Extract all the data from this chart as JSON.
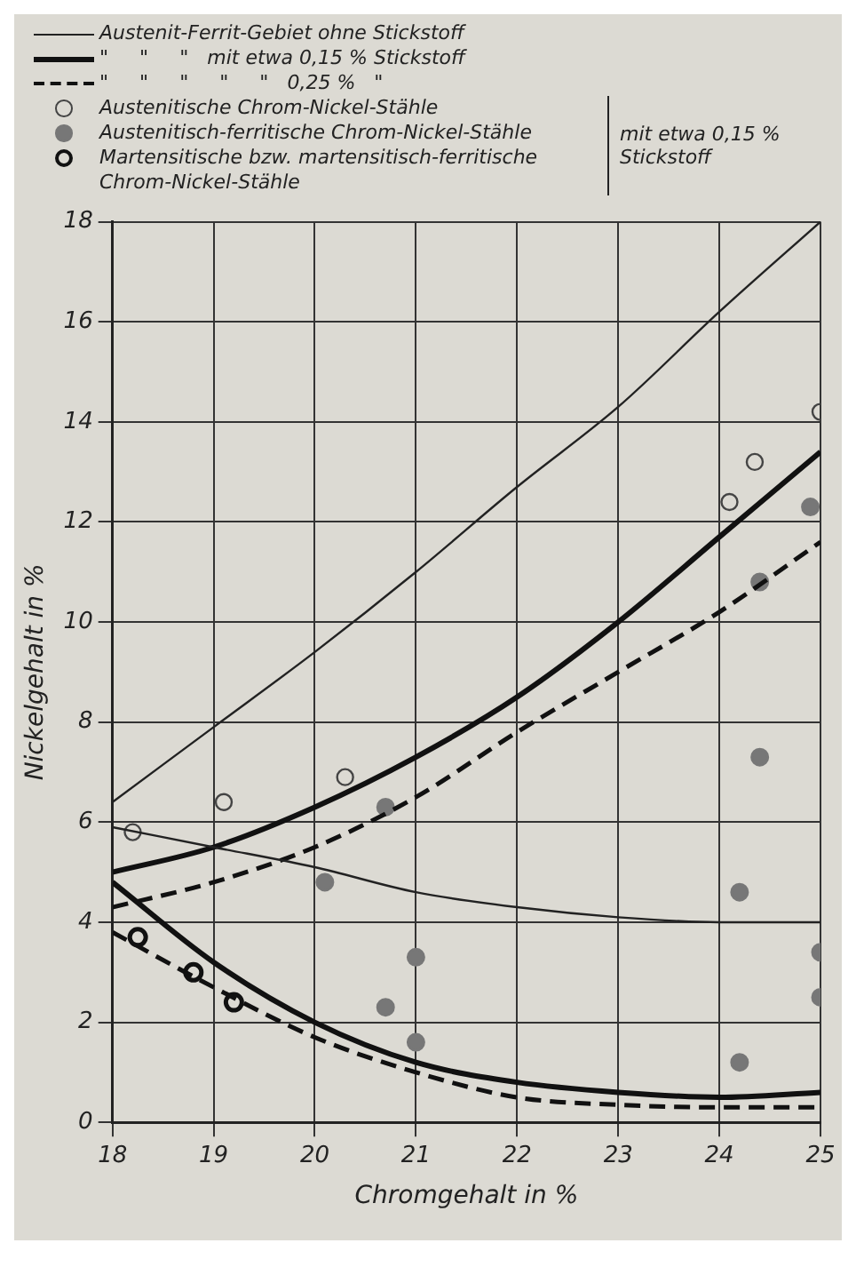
{
  "chart_data": {
    "type": "line",
    "xlabel": "Chromgehalt in %",
    "ylabel": "Nickelgehalt in %",
    "xlim": [
      18,
      25
    ],
    "xticks": [
      18,
      19,
      20,
      21,
      22,
      23,
      24,
      25
    ],
    "ylim": [
      0,
      18
    ],
    "yticks": [
      0,
      2,
      4,
      6,
      8,
      10,
      12,
      14,
      16,
      18
    ],
    "grid": true,
    "legend": "top",
    "marker": "none",
    "annotations": [
      "mit etwa 0,15 % Stickstoff"
    ],
    "series": [
      {
        "name": "Austenit-Ferrit-Gebiet ohne Stickstoff",
        "line_style": "solid",
        "color": "#222222",
        "x": [
          18,
          19,
          20,
          21,
          22,
          23,
          24,
          25
        ],
        "values": [
          6.4,
          7.9,
          9.4,
          11.0,
          12.7,
          14.3,
          16.2,
          18.0
        ]
      },
      {
        "line_style": "solid",
        "color": "#222222",
        "x": [
          18,
          19,
          20,
          21,
          22,
          23,
          24,
          25
        ],
        "values": [
          5.9,
          5.5,
          5.1,
          4.6,
          4.3,
          4.1,
          4.0,
          4.0
        ]
      },
      {
        "name": "\"     \"     \"   mit etwa 0,15 % Stickstoff",
        "line_style": "solid",
        "color": "#111111",
        "x": [
          18,
          19,
          20,
          21,
          22,
          23,
          24,
          25
        ],
        "values": [
          5.0,
          5.5,
          6.3,
          7.3,
          8.5,
          10.0,
          11.7,
          13.4
        ]
      },
      {
        "line_style": "solid",
        "color": "#111111",
        "x": [
          18,
          19,
          20,
          21,
          22,
          23,
          24,
          25
        ],
        "values": [
          4.8,
          3.2,
          2.0,
          1.2,
          0.8,
          0.6,
          0.5,
          0.6
        ]
      },
      {
        "name": "\"     \"     \"     \"     \"   0,25 %   \"",
        "line_style": "dashed",
        "color": "#111111",
        "x": [
          18,
          19,
          20,
          21,
          22,
          23,
          24,
          25
        ],
        "values": [
          4.3,
          4.8,
          5.5,
          6.5,
          7.8,
          9.0,
          10.2,
          11.6
        ]
      },
      {
        "line_style": "dashed",
        "color": "#111111",
        "x": [
          18,
          19,
          20,
          21,
          22,
          23,
          24,
          25
        ],
        "values": [
          3.8,
          2.7,
          1.7,
          1.0,
          0.5,
          0.35,
          0.3,
          0.3
        ]
      },
      {
        "name": "Austenitische Chrom-Nickel-Stähle",
        "type": "scatter",
        "marker": "circle",
        "color": "#444444",
        "x": [
          18.2,
          19.1,
          20.3,
          24.1,
          24.35,
          25
        ],
        "values": [
          5.8,
          6.4,
          6.9,
          12.4,
          13.2,
          14.2
        ]
      },
      {
        "name": "Austenitisch-ferritische Chrom-Nickel-Stähle",
        "type": "scatter",
        "marker": "circle",
        "color": "#777777",
        "x": [
          20.1,
          20.7,
          20.7,
          21,
          21,
          24.2,
          24.4,
          24.4,
          24.9,
          24.2,
          25,
          25
        ],
        "values": [
          4.8,
          6.3,
          2.3,
          3.3,
          1.6,
          4.6,
          7.3,
          10.8,
          12.3,
          1.2,
          3.4,
          2.5
        ]
      },
      {
        "name": "Martensitische bzw. martensitisch-ferritische Chrom-Nickel-Stähle",
        "type": "scatter",
        "marker": "circle",
        "color": "#111111",
        "x": [
          18.25,
          18.8,
          19.2
        ],
        "values": [
          3.7,
          3.0,
          2.4
        ]
      }
    ]
  }
}
